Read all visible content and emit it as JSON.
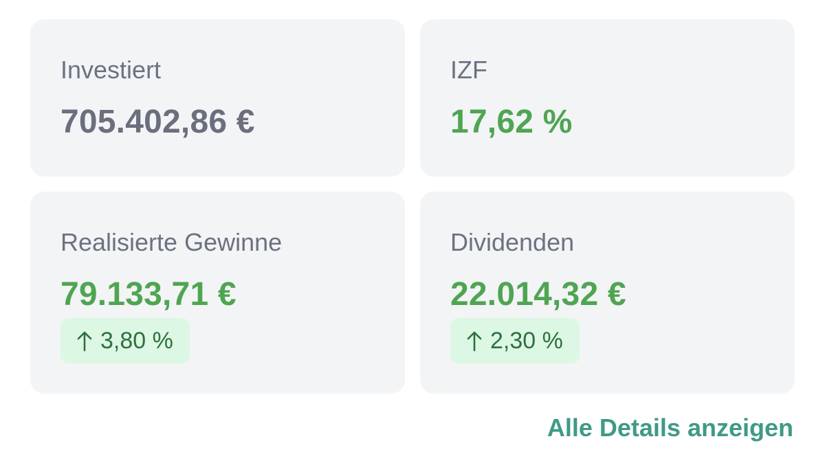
{
  "cards": {
    "investiert": {
      "label": "Investiert",
      "value": "705.402,86 €"
    },
    "izf": {
      "label": "IZF",
      "value": "17,62 %"
    },
    "realisierte_gewinne": {
      "label": "Realisierte Gewinne",
      "value": "79.133,71 €",
      "change": "3,80 %",
      "change_icon": "arrow-up-icon"
    },
    "dividenden": {
      "label": "Dividenden",
      "value": "22.014,32 €",
      "change": "2,30 %",
      "change_icon": "arrow-up-icon"
    }
  },
  "details_link": {
    "label": "Alle Details anzeigen"
  },
  "colors": {
    "card_background": "#f3f4f6",
    "label_gray": "#6b7280",
    "neutral_value": "#6b6f7d",
    "positive_green": "#4fa552",
    "badge_background": "#dcf7e3",
    "badge_text": "#2f6f3e",
    "link_teal": "#3f9a86"
  }
}
